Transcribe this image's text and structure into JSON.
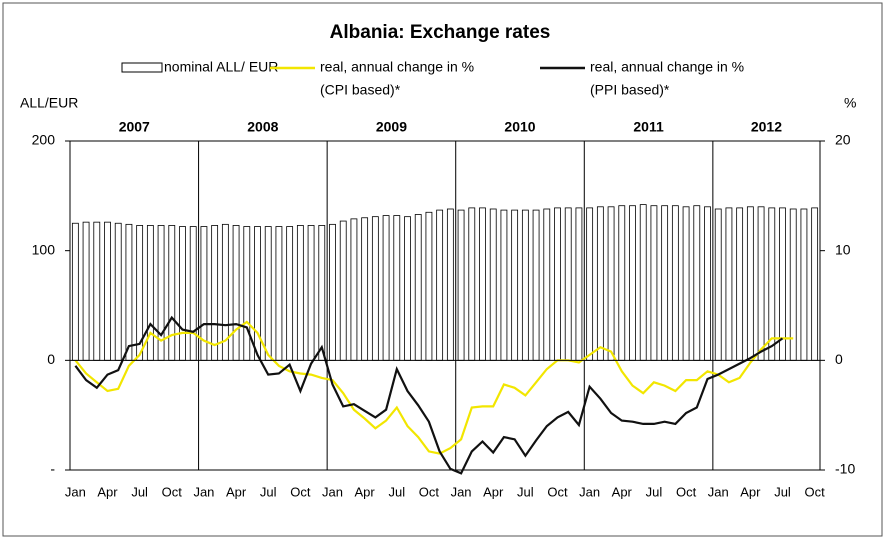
{
  "chart_data": {
    "type": "bar-line",
    "title": "Albania: Exchange rates",
    "y_label": "ALL/EUR",
    "y2_label": "%",
    "categories": [
      "Jan",
      null,
      null,
      "Apr",
      null,
      null,
      "Jul",
      null,
      null,
      "Oct",
      null,
      null,
      "Jan",
      null,
      null,
      "Apr",
      null,
      null,
      "Jul",
      null,
      null,
      "Oct",
      null,
      null,
      "Jan",
      null,
      null,
      "Apr",
      null,
      null,
      "Jul",
      null,
      null,
      "Oct",
      null,
      null,
      "Jan",
      null,
      null,
      "Apr",
      null,
      null,
      "Jul",
      null,
      null,
      "Oct",
      null,
      null,
      "Jan",
      null,
      null,
      "Apr",
      null,
      null,
      "Jul",
      null,
      null,
      "Oct",
      null,
      null,
      "Jan",
      null,
      null,
      "Apr",
      null,
      null,
      "Jul",
      null,
      null,
      "Oct"
    ],
    "years": [
      "2007",
      "2008",
      "2009",
      "2010",
      "2011",
      "2012"
    ],
    "ylim": [
      -100,
      200
    ],
    "yticks": [
      {
        "value": -100,
        "label": "-"
      },
      0,
      100,
      200
    ],
    "y2lim": [
      -10,
      20
    ],
    "y2ticks": [
      -10,
      0,
      10,
      20
    ],
    "series": [
      {
        "name": "nominal ALL/ EUR",
        "type": "bar",
        "color": "#ffffff",
        "values": [
          125,
          126,
          126,
          126,
          125,
          124,
          123,
          123,
          123,
          123,
          122,
          122,
          122,
          123,
          124,
          123,
          122,
          122,
          122,
          122,
          122,
          123,
          123,
          123,
          124,
          127,
          129,
          130,
          131,
          132,
          132,
          131,
          133,
          135,
          137,
          138,
          137,
          139,
          139,
          138,
          137,
          137,
          137,
          137,
          138,
          139,
          139,
          139,
          139,
          140,
          140,
          141,
          141,
          142,
          141,
          141,
          141,
          140,
          141,
          140,
          138,
          139,
          139,
          140,
          140,
          139,
          139,
          138,
          138,
          139
        ]
      },
      {
        "name": "real, annual change in %",
        "note": "(CPI based)*",
        "type": "line",
        "axis": "y2",
        "color": "#f2e600",
        "values": [
          0,
          -1.2,
          -2.0,
          -2.8,
          -2.6,
          -0.5,
          0.5,
          2.5,
          1.8,
          2.3,
          2.5,
          2.5,
          1.8,
          1.4,
          1.8,
          2.8,
          3.5,
          2.5,
          0.5,
          -0.5,
          -1.0,
          -1.2,
          -1.3,
          -1.6,
          -1.8,
          -3.0,
          -4.5,
          -5.3,
          -6.2,
          -5.5,
          -4.3,
          -6.0,
          -7.0,
          -8.3,
          -8.5,
          -8.0,
          -7.2,
          -4.3,
          -4.2,
          -4.2,
          -2.2,
          -2.5,
          -3.2,
          -2.0,
          -0.8,
          0,
          0,
          -0.2,
          0.5,
          1.2,
          0.8,
          -1.0,
          -2.3,
          -3.0,
          -2.0,
          -2.3,
          -2.8,
          -1.8,
          -1.8,
          -1.0,
          -1.3,
          -2.0,
          -1.6,
          -0.2,
          1.0,
          2.0,
          2.0,
          2.0,
          null,
          null
        ]
      },
      {
        "name": "real, annual change in %",
        "note": "(PPI based)*",
        "type": "line",
        "axis": "y2",
        "color": "#111111",
        "values": [
          -0.5,
          -1.8,
          -2.5,
          -1.3,
          -0.9,
          1.3,
          1.5,
          3.3,
          2.3,
          3.9,
          2.8,
          2.6,
          3.3,
          3.3,
          3.2,
          3.3,
          3.0,
          0.5,
          -1.3,
          -1.2,
          -0.4,
          -2.8,
          -0.3,
          1.2,
          -2.2,
          -4.2,
          -4.0,
          -4.6,
          -5.2,
          -4.5,
          -0.8,
          -2.8,
          -4.1,
          -5.6,
          -8.3,
          -9.9,
          -10.3,
          -8.3,
          -7.4,
          -8.4,
          -7.0,
          -7.2,
          -8.7,
          -7.3,
          -6.0,
          -5.2,
          -4.7,
          -5.9,
          -2.4,
          -3.5,
          -4.8,
          -5.5,
          -5.6,
          -5.8,
          -5.8,
          -5.6,
          -5.8,
          -4.8,
          -4.3,
          -1.7,
          -1.3,
          -0.8,
          -0.3,
          0.2,
          0.8,
          1.3,
          2.0,
          null,
          null,
          null
        ]
      }
    ]
  }
}
